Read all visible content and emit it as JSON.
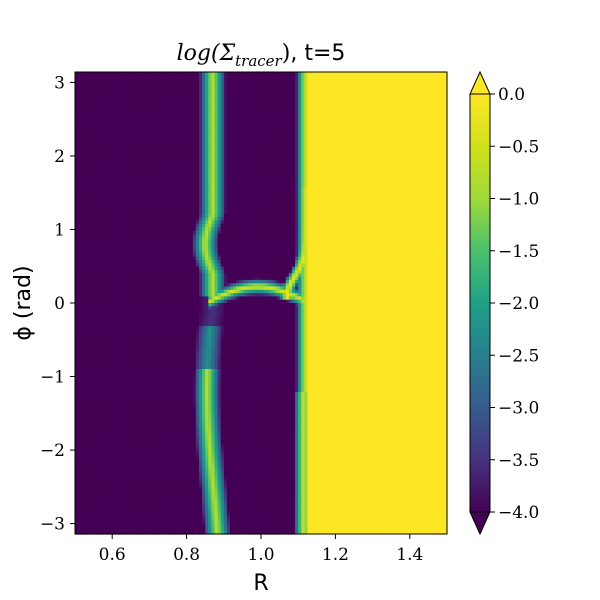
{
  "chart_data": {
    "type": "heatmap",
    "title": {
      "math": "log(Σ",
      "sub": "tracer",
      "close": ")",
      "suffix": ", t=5"
    },
    "xlabel": "R",
    "ylabel": "ϕ (rad)",
    "xlim": [
      0.5,
      1.5
    ],
    "ylim": [
      -3.14159,
      3.14159
    ],
    "x_ticks": [
      {
        "value": 0.6,
        "label": "0.6"
      },
      {
        "value": 0.8,
        "label": "0.8"
      },
      {
        "value": 1.0,
        "label": "1.0"
      },
      {
        "value": 1.2,
        "label": "1.2"
      },
      {
        "value": 1.4,
        "label": "1.4"
      }
    ],
    "y_ticks": [
      {
        "value": 3,
        "label": "3"
      },
      {
        "value": 2,
        "label": "2"
      },
      {
        "value": 1,
        "label": "1"
      },
      {
        "value": 0,
        "label": "0"
      },
      {
        "value": -1,
        "label": "−1"
      },
      {
        "value": -2,
        "label": "−2"
      },
      {
        "value": -3,
        "label": "−3"
      }
    ],
    "colorbar": {
      "colormap": "viridis",
      "vmin": -4.0,
      "vmax": 0.0,
      "extend": "both",
      "ticks": [
        {
          "value": 0.0,
          "label": "0.0"
        },
        {
          "value": -0.5,
          "label": "−0.5"
        },
        {
          "value": -1.0,
          "label": "−1.0"
        },
        {
          "value": -1.5,
          "label": "−1.5"
        },
        {
          "value": -2.0,
          "label": "−2.0"
        },
        {
          "value": -2.5,
          "label": "−2.5"
        },
        {
          "value": -3.0,
          "label": "−3.0"
        },
        {
          "value": -3.5,
          "label": "−3.5"
        },
        {
          "value": -4.0,
          "label": "−4.0"
        }
      ]
    },
    "field_features": {
      "background_value": -4.0,
      "outer_disk": {
        "r_edge": 1.125,
        "value": 0.0
      },
      "inner_stream": {
        "r_center": 0.87,
        "half_width": 0.035,
        "value": -0.7
      },
      "outer_stream": {
        "r_center": 1.12,
        "half_width": 0.025,
        "value": -0.4
      },
      "horseshoe": {
        "phi": 0.02,
        "r_from": 0.86,
        "r_to": 1.12,
        "value": -0.3
      },
      "upper_arm": {
        "phi_from": 0.05,
        "phi_to": 1.55,
        "r_from": 1.07,
        "r_to": 1.13,
        "value": -0.2
      }
    }
  }
}
